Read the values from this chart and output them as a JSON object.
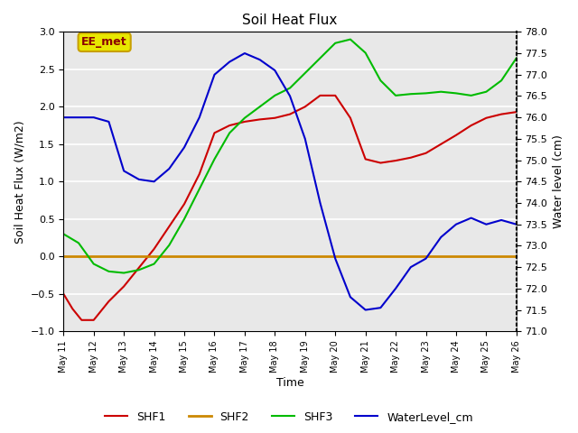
{
  "title": "Soil Heat Flux",
  "xlabel": "Time",
  "ylabel_left": "Soil Heat Flux (W/m2)",
  "ylabel_right": "Water level (cm)",
  "ylim_left": [
    -1.0,
    3.0
  ],
  "ylim_right": [
    71.0,
    78.0
  ],
  "background_color": "#e8e8e8",
  "annotation_text": "EE_met",
  "annotation_box_facecolor": "#e8e800",
  "annotation_box_edgecolor": "#c8a000",
  "annotation_text_color": "#8b0000",
  "legend_items": [
    "SHF1",
    "SHF2",
    "SHF3",
    "WaterLevel_cm"
  ],
  "legend_colors": [
    "#cc0000",
    "#cc8800",
    "#00bb00",
    "#0000cc"
  ],
  "shf1_x": [
    0,
    0.3,
    0.6,
    1.0,
    1.5,
    2.0,
    2.5,
    3.0,
    3.5,
    4.0,
    4.5,
    5.0,
    5.5,
    6.0,
    6.5,
    7.0,
    7.5,
    8.0,
    8.5,
    9.0,
    9.5,
    10.0,
    10.5,
    11.0,
    11.5,
    12.0,
    12.5,
    13.0,
    13.5,
    14.0,
    14.5,
    15.0
  ],
  "shf1_y": [
    -0.5,
    -0.7,
    -0.85,
    -0.85,
    -0.6,
    -0.4,
    -0.15,
    0.1,
    0.4,
    0.7,
    1.1,
    1.65,
    1.75,
    1.8,
    1.83,
    1.85,
    1.9,
    2.0,
    2.15,
    2.15,
    1.85,
    1.3,
    1.25,
    1.28,
    1.32,
    1.38,
    1.5,
    1.62,
    1.75,
    1.85,
    1.9,
    1.93
  ],
  "shf2_x": [
    0,
    2,
    4,
    6,
    8,
    10,
    12,
    14,
    15
  ],
  "shf2_y": [
    0.0,
    0.0,
    0.0,
    0.0,
    0.0,
    0.0,
    0.0,
    0.0,
    0.0
  ],
  "shf3_x": [
    0,
    0.5,
    1.0,
    1.5,
    2.0,
    2.5,
    3.0,
    3.5,
    4.0,
    4.5,
    5.0,
    5.5,
    6.0,
    6.5,
    7.0,
    7.5,
    8.0,
    8.5,
    9.0,
    9.5,
    10.0,
    10.5,
    11.0,
    11.5,
    12.0,
    12.5,
    13.0,
    13.5,
    14.0,
    14.5,
    15.0
  ],
  "shf3_y": [
    0.3,
    0.18,
    -0.1,
    -0.2,
    -0.22,
    -0.18,
    -0.1,
    0.15,
    0.5,
    0.9,
    1.3,
    1.65,
    1.85,
    2.0,
    2.15,
    2.25,
    2.45,
    2.65,
    2.85,
    2.9,
    2.72,
    2.35,
    2.15,
    2.17,
    2.18,
    2.2,
    2.18,
    2.15,
    2.2,
    2.35,
    2.65
  ],
  "wl_x": [
    0,
    0.3,
    0.6,
    1.0,
    1.5,
    2.0,
    2.5,
    3.0,
    3.5,
    4.0,
    4.5,
    5.0,
    5.5,
    6.0,
    6.5,
    7.0,
    7.5,
    8.0,
    8.5,
    9.0,
    9.5,
    10.0,
    10.5,
    11.0,
    11.5,
    12.0,
    12.5,
    13.0,
    13.5,
    14.0,
    14.5,
    15.0
  ],
  "wl_y": [
    76.0,
    76.0,
    76.0,
    76.0,
    75.9,
    74.75,
    74.55,
    74.5,
    74.8,
    75.3,
    76.0,
    77.0,
    77.3,
    77.5,
    77.35,
    77.1,
    76.5,
    75.5,
    74.0,
    72.7,
    71.8,
    71.5,
    71.55,
    72.0,
    72.5,
    72.7,
    73.2,
    73.5,
    73.65,
    73.5,
    73.6,
    73.5
  ],
  "xtick_positions": [
    0,
    1,
    2,
    3,
    4,
    5,
    6,
    7,
    8,
    9,
    10,
    11,
    12,
    13,
    14,
    15
  ],
  "xtick_labels": [
    "May 11",
    "May 12",
    "May 13",
    "May 14",
    "May 15",
    "May 16",
    "May 17",
    "May 18",
    "May 19",
    "May 20",
    "May 21",
    "May 22",
    "May 23",
    "May 24",
    "May 25",
    "May 26"
  ],
  "ytick_left": [
    -1.0,
    -0.5,
    0.0,
    0.5,
    1.0,
    1.5,
    2.0,
    2.5,
    3.0
  ],
  "ytick_right": [
    71.0,
    71.5,
    72.0,
    72.5,
    73.0,
    73.5,
    74.0,
    74.5,
    75.0,
    75.5,
    76.0,
    76.5,
    77.0,
    77.5,
    78.0
  ]
}
